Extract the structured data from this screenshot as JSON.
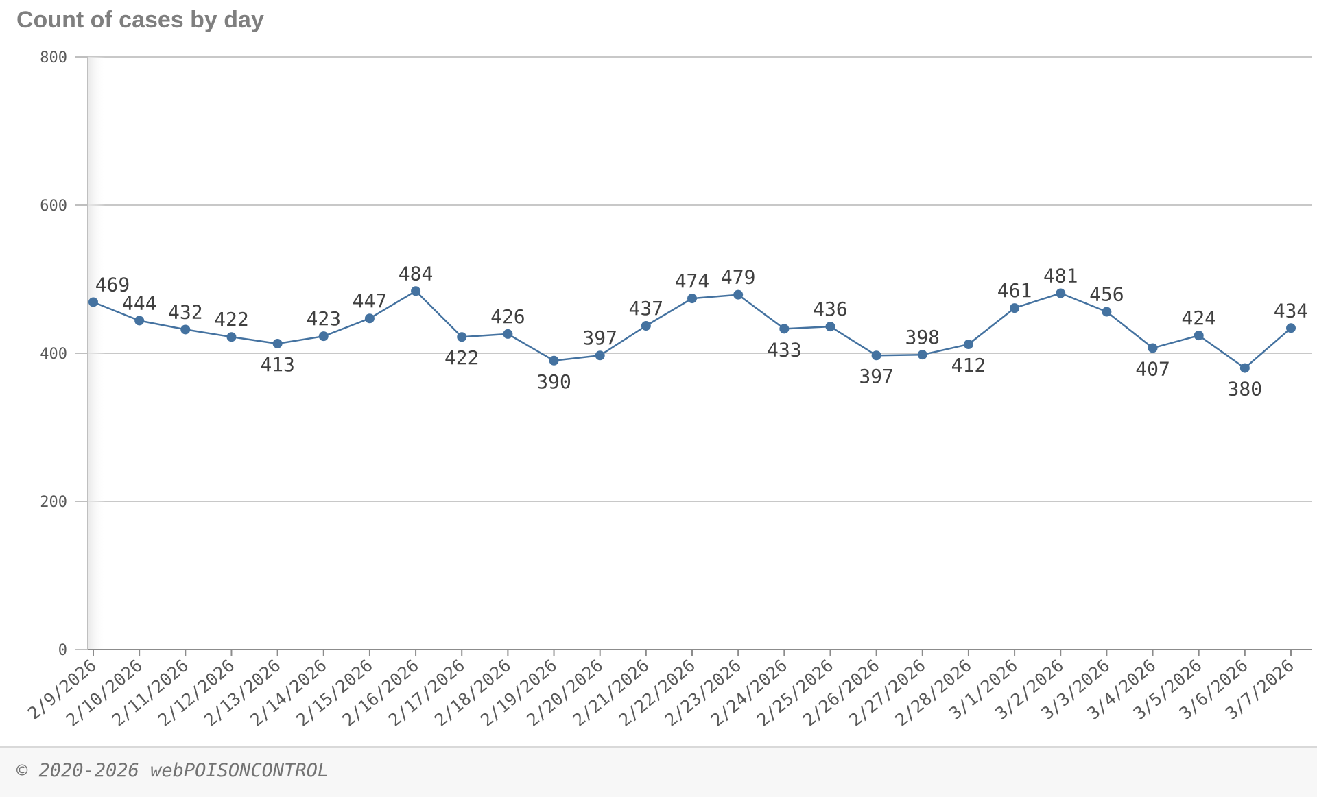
{
  "chart_data": {
    "type": "line",
    "title": "Count of cases by day",
    "xlabel": "",
    "ylabel": "",
    "ylim": [
      0,
      800
    ],
    "yticks": [
      0,
      200,
      400,
      600,
      800
    ],
    "grid": true,
    "categories": [
      "2/9/2026",
      "2/10/2026",
      "2/11/2026",
      "2/12/2026",
      "2/13/2026",
      "2/14/2026",
      "2/15/2026",
      "2/16/2026",
      "2/17/2026",
      "2/18/2026",
      "2/19/2026",
      "2/20/2026",
      "2/21/2026",
      "2/22/2026",
      "2/23/2026",
      "2/24/2026",
      "2/25/2026",
      "2/26/2026",
      "2/27/2026",
      "2/28/2026",
      "3/1/2026",
      "3/2/2026",
      "3/3/2026",
      "3/4/2026",
      "3/5/2026",
      "3/6/2026",
      "3/7/2026"
    ],
    "series": [
      {
        "name": "Count of cases",
        "color": "#4472a0",
        "values": [
          469,
          444,
          432,
          422,
          413,
          423,
          447,
          484,
          422,
          426,
          390,
          397,
          437,
          474,
          479,
          433,
          436,
          397,
          398,
          412,
          461,
          481,
          456,
          407,
          424,
          380,
          434
        ],
        "label_positions": [
          "above",
          "above",
          "above",
          "above",
          "below",
          "above",
          "above",
          "above",
          "below",
          "above",
          "below",
          "above",
          "above",
          "above",
          "above",
          "below",
          "above",
          "below",
          "above",
          "below",
          "above",
          "above",
          "above",
          "below",
          "above",
          "below",
          "above"
        ]
      }
    ]
  },
  "footer": {
    "text": "© 2020-2026 webPOISONCONTROL"
  }
}
